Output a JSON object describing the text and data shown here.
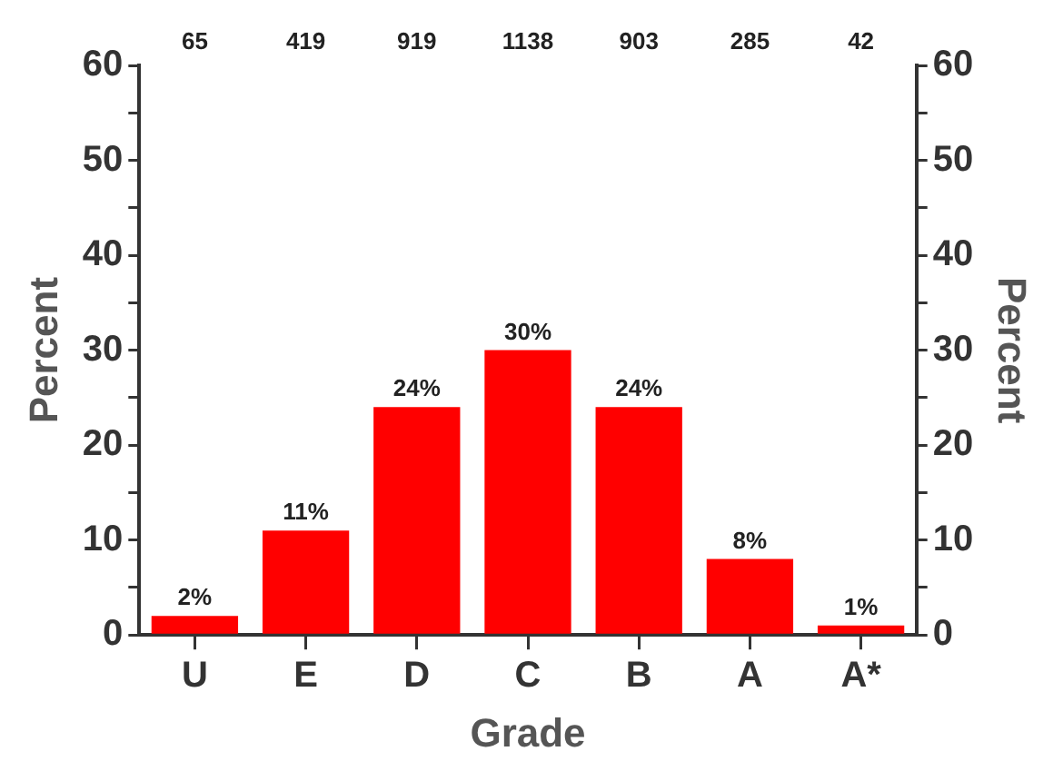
{
  "chart_data": {
    "type": "bar",
    "xlabel": "Grade",
    "ylabel": "Percent",
    "y2label": "Percent",
    "categories": [
      "U",
      "E",
      "D",
      "C",
      "B",
      "A",
      "A*"
    ],
    "values": [
      2,
      11,
      24,
      30,
      24,
      8,
      1
    ],
    "value_labels": [
      "2%",
      "11%",
      "24%",
      "30%",
      "24%",
      "8%",
      "1%"
    ],
    "color": "#ff0000",
    "ylim": [
      0,
      60
    ],
    "yticks": [
      0,
      {
        "value": 5,
        "label": null
      },
      10,
      {
        "value": 15,
        "label": null
      },
      20,
      {
        "value": 25,
        "label": null
      },
      30,
      {
        "value": 35,
        "label": null
      },
      40,
      {
        "value": 45,
        "label": null
      },
      50,
      {
        "value": 55,
        "label": null
      },
      60
    ],
    "y2lim": [
      0,
      60
    ],
    "y2ticks": [
      0,
      {
        "value": 5,
        "label": null
      },
      10,
      {
        "value": 15,
        "label": null
      },
      20,
      {
        "value": 25,
        "label": null
      },
      30,
      {
        "value": 35,
        "label": null
      },
      40,
      {
        "value": 45,
        "label": null
      },
      50,
      {
        "value": 55,
        "label": null
      },
      60
    ],
    "annotations": [
      "65",
      "419",
      "919",
      "1138",
      "903",
      "285",
      "42"
    ],
    "grid": false,
    "legend": false
  }
}
